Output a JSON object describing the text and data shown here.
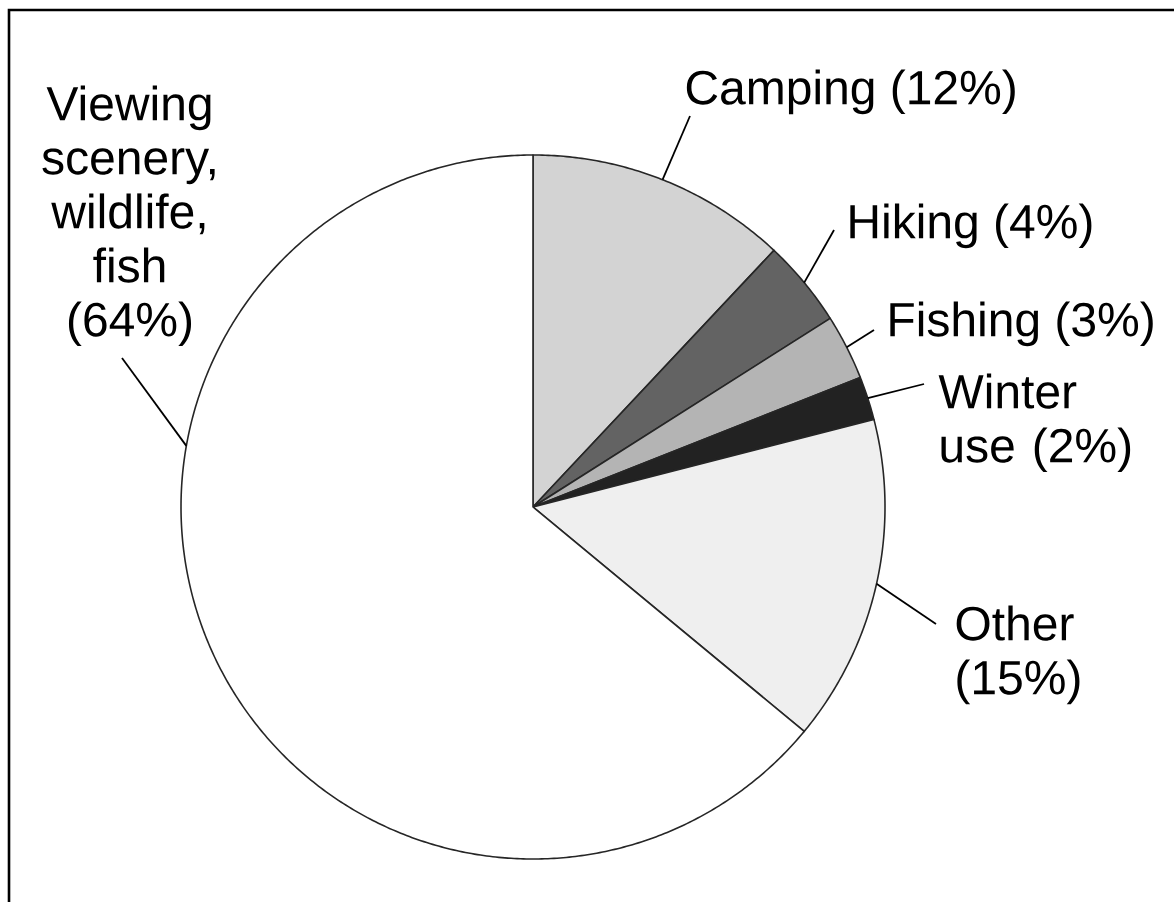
{
  "chart_data": {
    "type": "pie",
    "categories": [
      "Camping (12%)",
      "Hiking (4%)",
      "Fishing (3%)",
      "Winter use (2%)",
      "Other (15%)",
      "Viewing scenery, wildlife, fish (64%)"
    ],
    "values": [
      12,
      4,
      3,
      2,
      15,
      64
    ],
    "colors": [
      "#d3d3d3",
      "#636363",
      "#b4b4b4",
      "#222222",
      "#efefef",
      "#ffffff"
    ]
  }
}
